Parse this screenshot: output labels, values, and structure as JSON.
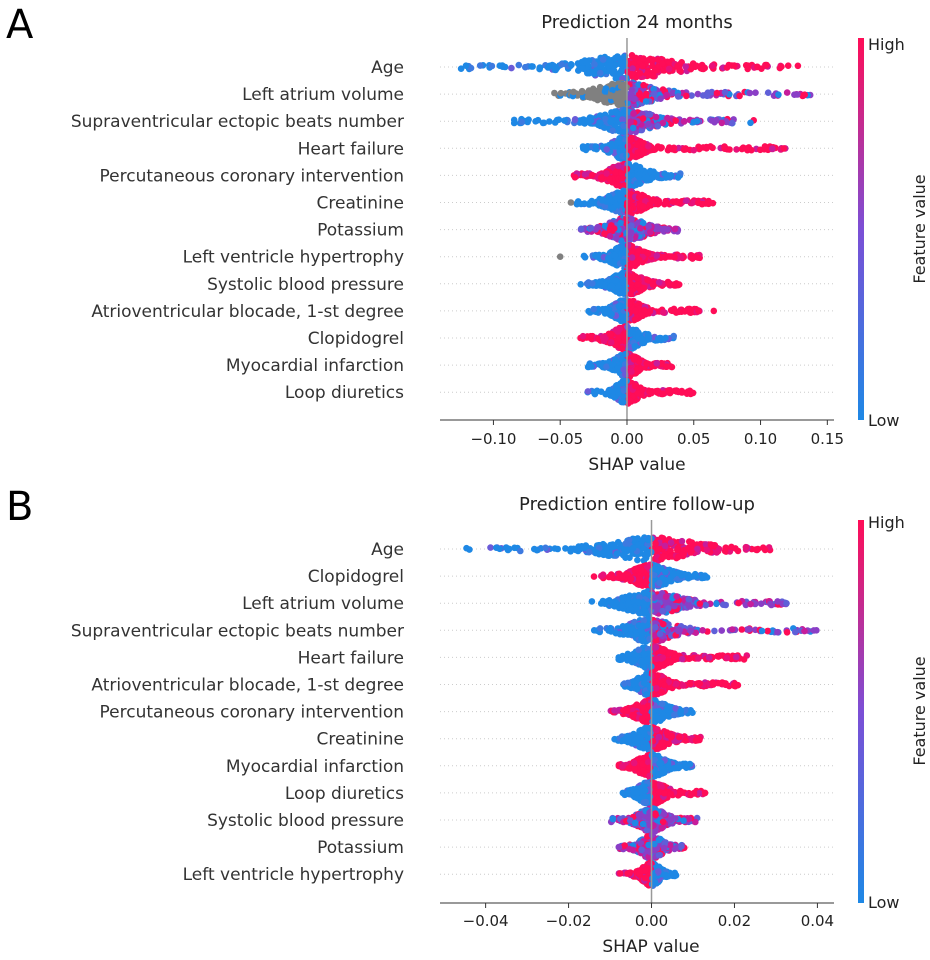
{
  "chart_data": [
    {
      "type": "scatter",
      "subtype": "shap-beeswarm",
      "panel_letter": "A",
      "title": "Prediction 24 months",
      "xlabel": "SHAP value",
      "xlim": [
        -0.14,
        0.155
      ],
      "xticks": [
        -0.1,
        -0.05,
        0.0,
        0.05,
        0.1,
        0.15
      ],
      "xtick_labels": [
        "−0.10",
        "−0.05",
        "0.00",
        "0.05",
        "0.10",
        "0.15"
      ],
      "colorbar": {
        "label": "Feature value",
        "high_label": "High",
        "low_label": "Low",
        "low_color": "#1e88e5",
        "high_color": "#ff0d57"
      },
      "features": [
        {
          "name": "Age",
          "min": -0.125,
          "max": 0.135,
          "spread": 0.06,
          "neg_color": "low",
          "pos_color": "high",
          "outliers": []
        },
        {
          "name": "Left atrium volume",
          "min": -0.055,
          "max": 0.14,
          "spread": 0.04,
          "neg_color": "missing",
          "pos_color": "mixed",
          "outliers": []
        },
        {
          "name": "Supraventricular ectopic beats number",
          "min": -0.085,
          "max": 0.095,
          "spread": 0.035,
          "neg_color": "low",
          "pos_color": "mixed",
          "outliers": []
        },
        {
          "name": "Heart failure",
          "min": -0.035,
          "max": 0.12,
          "spread": 0.02,
          "neg_color": "low",
          "pos_color": "high",
          "outliers": []
        },
        {
          "name": "Percutaneous coronary intervention",
          "min": -0.04,
          "max": 0.04,
          "spread": 0.025,
          "neg_color": "high",
          "pos_color": "low",
          "outliers": []
        },
        {
          "name": "Creatinine",
          "min": -0.04,
          "max": 0.065,
          "spread": 0.025,
          "neg_color": "low",
          "pos_color": "high",
          "outliers": [
            -0.042
          ]
        },
        {
          "name": "Potassium",
          "min": -0.035,
          "max": 0.04,
          "spread": 0.025,
          "neg_color": "mixed",
          "pos_color": "mixed",
          "outliers": []
        },
        {
          "name": "Left ventricle hypertrophy",
          "min": -0.035,
          "max": 0.055,
          "spread": 0.02,
          "neg_color": "low",
          "pos_color": "high",
          "outliers": [
            -0.05
          ]
        },
        {
          "name": "Systolic blood pressure",
          "min": -0.035,
          "max": 0.04,
          "spread": 0.02,
          "neg_color": "low",
          "pos_color": "high",
          "outliers": []
        },
        {
          "name": "Atrioventricular blocade, 1-st degree",
          "min": -0.03,
          "max": 0.055,
          "spread": 0.018,
          "neg_color": "low",
          "pos_color": "high",
          "outliers": [
            0.065
          ]
        },
        {
          "name": "Clopidogrel",
          "min": -0.035,
          "max": 0.035,
          "spread": 0.02,
          "neg_color": "high",
          "pos_color": "low",
          "outliers": []
        },
        {
          "name": "Myocardial infarction",
          "min": -0.03,
          "max": 0.035,
          "spread": 0.016,
          "neg_color": "low",
          "pos_color": "high",
          "outliers": []
        },
        {
          "name": "Loop diuretics",
          "min": -0.03,
          "max": 0.05,
          "spread": 0.015,
          "neg_color": "low",
          "pos_color": "high",
          "outliers": []
        }
      ]
    },
    {
      "type": "scatter",
      "subtype": "shap-beeswarm",
      "panel_letter": "B",
      "title": "Prediction entire follow-up",
      "xlabel": "SHAP value",
      "xlim": [
        -0.051,
        0.044
      ],
      "xticks": [
        -0.04,
        -0.02,
        0.0,
        0.02,
        0.04
      ],
      "xtick_labels": [
        "−0.04",
        "−0.02",
        "0.00",
        "0.02",
        "0.04"
      ],
      "colorbar": {
        "label": "Feature value",
        "high_label": "High",
        "low_label": "Low",
        "low_color": "#1e88e5",
        "high_color": "#ff0d57"
      },
      "features": [
        {
          "name": "Age",
          "min": -0.047,
          "max": 0.029,
          "spread": 0.02,
          "neg_color": "low",
          "pos_color": "high",
          "outliers": []
        },
        {
          "name": "Clopidogrel",
          "min": -0.014,
          "max": 0.014,
          "spread": 0.008,
          "neg_color": "high",
          "pos_color": "low",
          "outliers": []
        },
        {
          "name": "Left atrium volume",
          "min": -0.015,
          "max": 0.033,
          "spread": 0.012,
          "neg_color": "low",
          "pos_color": "mixed",
          "outliers": []
        },
        {
          "name": "Supraventricular ectopic beats number",
          "min": -0.014,
          "max": 0.04,
          "spread": 0.01,
          "neg_color": "low",
          "pos_color": "mixed",
          "outliers": []
        },
        {
          "name": "Heart failure",
          "min": -0.008,
          "max": 0.023,
          "spread": 0.007,
          "neg_color": "low",
          "pos_color": "high",
          "outliers": []
        },
        {
          "name": "Atrioventricular blocade, 1-st degree",
          "min": -0.007,
          "max": 0.021,
          "spread": 0.006,
          "neg_color": "low",
          "pos_color": "high",
          "outliers": []
        },
        {
          "name": "Percutaneous coronary intervention",
          "min": -0.01,
          "max": 0.01,
          "spread": 0.007,
          "neg_color": "high",
          "pos_color": "low",
          "outliers": []
        },
        {
          "name": "Creatinine",
          "min": -0.009,
          "max": 0.012,
          "spread": 0.007,
          "neg_color": "low",
          "pos_color": "high",
          "outliers": []
        },
        {
          "name": "Myocardial infarction",
          "min": -0.009,
          "max": 0.01,
          "spread": 0.006,
          "neg_color": "high",
          "pos_color": "low",
          "outliers": []
        },
        {
          "name": "Loop diuretics",
          "min": -0.007,
          "max": 0.013,
          "spread": 0.006,
          "neg_color": "low",
          "pos_color": "high",
          "outliers": []
        },
        {
          "name": "Systolic blood pressure",
          "min": -0.01,
          "max": 0.011,
          "spread": 0.006,
          "neg_color": "mixed",
          "pos_color": "mixed",
          "outliers": []
        },
        {
          "name": "Potassium",
          "min": -0.008,
          "max": 0.008,
          "spread": 0.005,
          "neg_color": "mixed",
          "pos_color": "mixed",
          "outliers": []
        },
        {
          "name": "Left ventricle hypertrophy",
          "min": -0.008,
          "max": 0.006,
          "spread": 0.004,
          "neg_color": "high",
          "pos_color": "low",
          "outliers": []
        }
      ]
    }
  ]
}
